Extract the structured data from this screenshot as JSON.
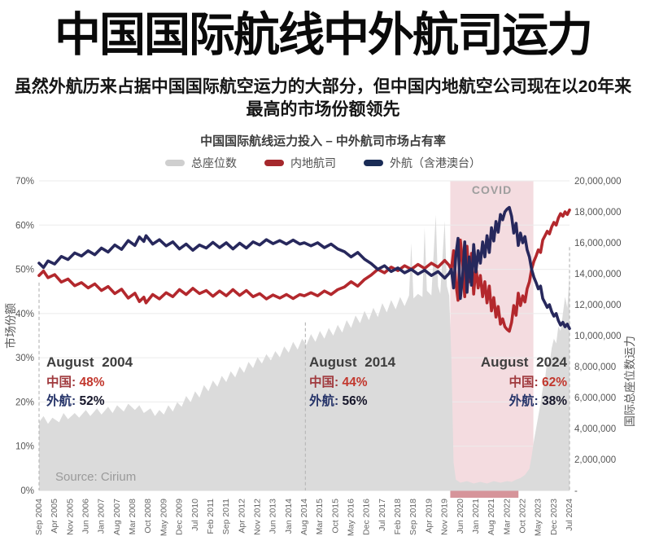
{
  "page": {
    "title": "中国国际航线中外航司运力",
    "subtitle": "虽然外航历来占据中国国际航空运力的大部分，但中国内地航空公司现在以20年来\n最高的市场份额领先"
  },
  "chart": {
    "title": "中国国际航线运力投入 – 中外航司市场占有率",
    "legend": [
      {
        "label": "总座位数",
        "color": "#cfcfcf"
      },
      {
        "label": "内地航司",
        "color": "#a5282c"
      },
      {
        "label": "外航（含港澳台）",
        "color": "#1a2c56"
      }
    ],
    "axis_left_title": "市场份额",
    "axis_right_title": "国际总座位数运力",
    "covid_label": "COVID",
    "source": "Source: Cirium",
    "annotations": [
      {
        "title": "August 2004",
        "china_label": "中国:",
        "china_value": "48%",
        "foreign_label": "外航:",
        "foreign_value": "52%"
      },
      {
        "title": "August 2014",
        "china_label": "中国:",
        "china_value": "44%",
        "foreign_label": "外航:",
        "foreign_value": "56%"
      },
      {
        "title": "August 2024",
        "china_label": "中国:",
        "china_value": "62%",
        "foreign_label": "外航:",
        "foreign_value": "38%"
      }
    ]
  },
  "chart_data": {
    "type": "line",
    "title": "中国国际航线运力投入 – 中外航司市场占有率",
    "x": {
      "unit": "month_index_from_Sep_2004",
      "start_label": "Sep 2004",
      "end_label": "Jul 2024",
      "months_total": 239,
      "tick_step_months": 7,
      "tick_labels": [
        "Sep 2004",
        "Apr 2005",
        "Nov 2005",
        "Jun 2006",
        "Jan 2007",
        "Aug 2007",
        "Mar 2008",
        "Oct 2008",
        "May 2009",
        "Dec 2009",
        "Jul 2010",
        "Feb 2011",
        "Sep 2011",
        "Apr 2012",
        "Nov 2012",
        "Jun 2013",
        "Jan 2014",
        "Aug 2014",
        "Mar 2015",
        "Oct 2015",
        "May 2016",
        "Dec 2016",
        "Jul 2017",
        "Feb 2018",
        "Sep 2018",
        "Apr 2019",
        "Nov 2019",
        "Jun 2020",
        "Jan 2021",
        "Aug 2021",
        "Mar 2022",
        "Oct 2022",
        "May 2023",
        "Dec 2023",
        "Jul 2024"
      ]
    },
    "y_left": {
      "label": "市场份额",
      "unit": "%",
      "range": [
        0,
        70
      ],
      "grid": true,
      "ticks": [
        "70%",
        "60%",
        "50%",
        "40%",
        "30%",
        "20%",
        "10%",
        "0%"
      ]
    },
    "y_right": {
      "label": "国际总座位数运力",
      "unit": "seats",
      "range": [
        0,
        20000000
      ],
      "ticks": [
        "20,000,000",
        "18,000,000",
        "16,000,000",
        "14,000,000",
        "12,000,000",
        "10,000,000",
        "8,000,000",
        "6,000,000",
        "4,000,000",
        "2,000,000",
        "-"
      ]
    },
    "covid_band": {
      "label": "COVID",
      "start_month": 184.5,
      "end_month": 221.8,
      "fill": "#f4dce0",
      "bottom_strip_fill": "#d6949a",
      "label_color": "#9e9e9e"
    },
    "legend_position": "top",
    "series": [
      {
        "name": "总座位数",
        "type": "area",
        "axis": "right",
        "color": "#dbdbdb",
        "unit": "million_seats",
        "points": [
          [
            0,
            4.4
          ],
          [
            2,
            4.8
          ],
          [
            4,
            4.3
          ],
          [
            6,
            4.7
          ],
          [
            9,
            4.4
          ],
          [
            11,
            5.0
          ],
          [
            13,
            4.6
          ],
          [
            16,
            5.0
          ],
          [
            18,
            4.7
          ],
          [
            21,
            5.2
          ],
          [
            23,
            4.8
          ],
          [
            26,
            5.3
          ],
          [
            28,
            4.9
          ],
          [
            31,
            5.4
          ],
          [
            33,
            5.0
          ],
          [
            35,
            5.5
          ],
          [
            38,
            5.1
          ],
          [
            40,
            5.6
          ],
          [
            43,
            5.2
          ],
          [
            45,
            5.5
          ],
          [
            47,
            5.0
          ],
          [
            50,
            5.3
          ],
          [
            52,
            4.8
          ],
          [
            54,
            5.2
          ],
          [
            56,
            4.9
          ],
          [
            58,
            5.5
          ],
          [
            60,
            5.1
          ],
          [
            62,
            5.7
          ],
          [
            64,
            5.4
          ],
          [
            66,
            6.1
          ],
          [
            68,
            5.7
          ],
          [
            70,
            6.4
          ],
          [
            72,
            6.0
          ],
          [
            74,
            6.8
          ],
          [
            76,
            6.4
          ],
          [
            78,
            7.1
          ],
          [
            80,
            6.7
          ],
          [
            82,
            7.4
          ],
          [
            84,
            7.0
          ],
          [
            86,
            7.7
          ],
          [
            88,
            7.3
          ],
          [
            90,
            8.0
          ],
          [
            92,
            7.6
          ],
          [
            94,
            8.3
          ],
          [
            96,
            7.9
          ],
          [
            98,
            8.6
          ],
          [
            100,
            8.2
          ],
          [
            102,
            8.8
          ],
          [
            104,
            8.4
          ],
          [
            106,
            9.0
          ],
          [
            108,
            8.6
          ],
          [
            110,
            9.3
          ],
          [
            112,
            8.9
          ],
          [
            114,
            9.6
          ],
          [
            116,
            9.1
          ],
          [
            118,
            9.8
          ],
          [
            120,
            9.4
          ],
          [
            122,
            10.1
          ],
          [
            124,
            9.6
          ],
          [
            126,
            10.3
          ],
          [
            128,
            9.8
          ],
          [
            130,
            10.5
          ],
          [
            132,
            10.0
          ],
          [
            134,
            10.7
          ],
          [
            136,
            10.2
          ],
          [
            138,
            11.0
          ],
          [
            140,
            10.5
          ],
          [
            142,
            11.3
          ],
          [
            144,
            10.8
          ],
          [
            146,
            11.6
          ],
          [
            148,
            11.0
          ],
          [
            150,
            11.8
          ],
          [
            152,
            11.2
          ],
          [
            154,
            12.1
          ],
          [
            156,
            11.5
          ],
          [
            158,
            12.3
          ],
          [
            160,
            11.7
          ],
          [
            162,
            12.5
          ],
          [
            164,
            11.9
          ],
          [
            166,
            12.6
          ],
          [
            167,
            16.0
          ],
          [
            168,
            12.4
          ],
          [
            170,
            12.7
          ],
          [
            172,
            12.5
          ],
          [
            173,
            17.0
          ],
          [
            174,
            12.9
          ],
          [
            176,
            12.6
          ],
          [
            178,
            17.8
          ],
          [
            179,
            13.2
          ],
          [
            180,
            12.7
          ],
          [
            182,
            17.4
          ],
          [
            183,
            13.2
          ],
          [
            184,
            12.6
          ],
          [
            185,
            8.5
          ],
          [
            186,
            1.8
          ],
          [
            187,
            0.7
          ],
          [
            189,
            0.5
          ],
          [
            192,
            0.6
          ],
          [
            195,
            0.45
          ],
          [
            198,
            0.55
          ],
          [
            201,
            0.45
          ],
          [
            204,
            0.6
          ],
          [
            207,
            0.5
          ],
          [
            210,
            0.6
          ],
          [
            212,
            0.55
          ],
          [
            214,
            0.7
          ],
          [
            216,
            0.8
          ],
          [
            218,
            1.0
          ],
          [
            220,
            1.4
          ],
          [
            221,
            2.2
          ],
          [
            222,
            3.2
          ],
          [
            223,
            4.0
          ],
          [
            224,
            4.8
          ],
          [
            225,
            5.6
          ],
          [
            226,
            6.6
          ],
          [
            227,
            7.2
          ],
          [
            228,
            8.4
          ],
          [
            229,
            8.1
          ],
          [
            230,
            9.2
          ],
          [
            231,
            9.8
          ],
          [
            232,
            9.5
          ],
          [
            233,
            10.6
          ],
          [
            234,
            10.3
          ],
          [
            235,
            11.4
          ],
          [
            236,
            12.5
          ],
          [
            237,
            11.8
          ],
          [
            238,
            13.9
          ]
        ]
      },
      {
        "name": "内地航司",
        "type": "line",
        "axis": "left",
        "color": "#b3282d",
        "unit": "percent",
        "points": [
          [
            0,
            48.6
          ],
          [
            2,
            49.6
          ],
          [
            4,
            48.1
          ],
          [
            7,
            48.8
          ],
          [
            10,
            47.1
          ],
          [
            13,
            47.8
          ],
          [
            16,
            46.3
          ],
          [
            19,
            47.0
          ],
          [
            22,
            45.8
          ],
          [
            25,
            46.7
          ],
          [
            28,
            45.2
          ],
          [
            31,
            46.1
          ],
          [
            34,
            44.5
          ],
          [
            37,
            45.5
          ],
          [
            40,
            43.5
          ],
          [
            43,
            44.6
          ],
          [
            45,
            42.7
          ],
          [
            47,
            43.7
          ],
          [
            48,
            42.4
          ],
          [
            51,
            44.3
          ],
          [
            54,
            43.3
          ],
          [
            57,
            44.7
          ],
          [
            60,
            43.8
          ],
          [
            63,
            45.4
          ],
          [
            66,
            44.3
          ],
          [
            69,
            45.7
          ],
          [
            72,
            44.5
          ],
          [
            75,
            45.2
          ],
          [
            78,
            43.9
          ],
          [
            81,
            45.1
          ],
          [
            84,
            44.0
          ],
          [
            87,
            45.4
          ],
          [
            90,
            44.1
          ],
          [
            93,
            45.2
          ],
          [
            96,
            43.8
          ],
          [
            99,
            44.5
          ],
          [
            102,
            43.3
          ],
          [
            105,
            44.2
          ],
          [
            108,
            43.5
          ],
          [
            111,
            44.3
          ],
          [
            114,
            43.4
          ],
          [
            117,
            44.3
          ],
          [
            119,
            44.0
          ],
          [
            122,
            44.7
          ],
          [
            125,
            44.0
          ],
          [
            128,
            45.1
          ],
          [
            131,
            44.3
          ],
          [
            134,
            45.4
          ],
          [
            137,
            46.0
          ],
          [
            140,
            47.2
          ],
          [
            143,
            46.2
          ],
          [
            146,
            47.7
          ],
          [
            149,
            48.7
          ],
          [
            152,
            50.0
          ],
          [
            155,
            49.2
          ],
          [
            158,
            50.5
          ],
          [
            161,
            49.7
          ],
          [
            164,
            50.8
          ],
          [
            167,
            50.0
          ],
          [
            170,
            51.1
          ],
          [
            173,
            50.2
          ],
          [
            176,
            51.4
          ],
          [
            179,
            50.5
          ],
          [
            182,
            52.0
          ],
          [
            184,
            50.9
          ],
          [
            185,
            50.0
          ],
          [
            186,
            54.2
          ],
          [
            187,
            46.8
          ],
          [
            188,
            43.0
          ],
          [
            189,
            56.6
          ],
          [
            190,
            51.8
          ],
          [
            191,
            43.8
          ],
          [
            192,
            55.2
          ],
          [
            193,
            47.2
          ],
          [
            194,
            53.6
          ],
          [
            195,
            44.4
          ],
          [
            196,
            50.6
          ],
          [
            197,
            45.8
          ],
          [
            198,
            48.6
          ],
          [
            199,
            43.8
          ],
          [
            200,
            47.2
          ],
          [
            201,
            42.4
          ],
          [
            202,
            46.2
          ],
          [
            203,
            40.6
          ],
          [
            204,
            43.6
          ],
          [
            205,
            39.2
          ],
          [
            206,
            41.6
          ],
          [
            207,
            37.6
          ],
          [
            208,
            38.8
          ],
          [
            209,
            37.0
          ],
          [
            210,
            36.4
          ],
          [
            211,
            36.0
          ],
          [
            212,
            38.0
          ],
          [
            213,
            41.8
          ],
          [
            214,
            39.6
          ],
          [
            215,
            44.6
          ],
          [
            216,
            41.8
          ],
          [
            217,
            44.0
          ],
          [
            218,
            42.6
          ],
          [
            219,
            45.6
          ],
          [
            220,
            47.2
          ],
          [
            221,
            50.0
          ],
          [
            222,
            51.8
          ],
          [
            223,
            53.0
          ],
          [
            224,
            54.4
          ],
          [
            225,
            53.8
          ],
          [
            226,
            56.6
          ],
          [
            227,
            57.6
          ],
          [
            228,
            58.6
          ],
          [
            229,
            58.0
          ],
          [
            230,
            59.6
          ],
          [
            231,
            60.6
          ],
          [
            232,
            60.0
          ],
          [
            233,
            61.6
          ],
          [
            234,
            62.6
          ],
          [
            235,
            62.0
          ],
          [
            236,
            63.0
          ],
          [
            237,
            62.4
          ],
          [
            238,
            63.4
          ]
        ]
      },
      {
        "name": "外航（含港澳台）",
        "type": "line",
        "axis": "left",
        "color": "#27285c",
        "unit": "percent",
        "derived_from": "内地航司",
        "formula": "100 - value"
      }
    ],
    "annotations": [
      {
        "date": "August 2004",
        "china_pct": 48,
        "foreign_pct": 52,
        "month_index": 0,
        "line_top_y_pct": 47
      },
      {
        "date": "August 2014",
        "china_pct": 44,
        "foreign_pct": 56,
        "month_index": 119.5,
        "line_top_y_pct": 38
      },
      {
        "date": "August 2024",
        "china_pct": 62,
        "foreign_pct": 38,
        "month_index": 238,
        "line_top_y_pct": 55
      }
    ],
    "source": "Source: Cirium"
  }
}
